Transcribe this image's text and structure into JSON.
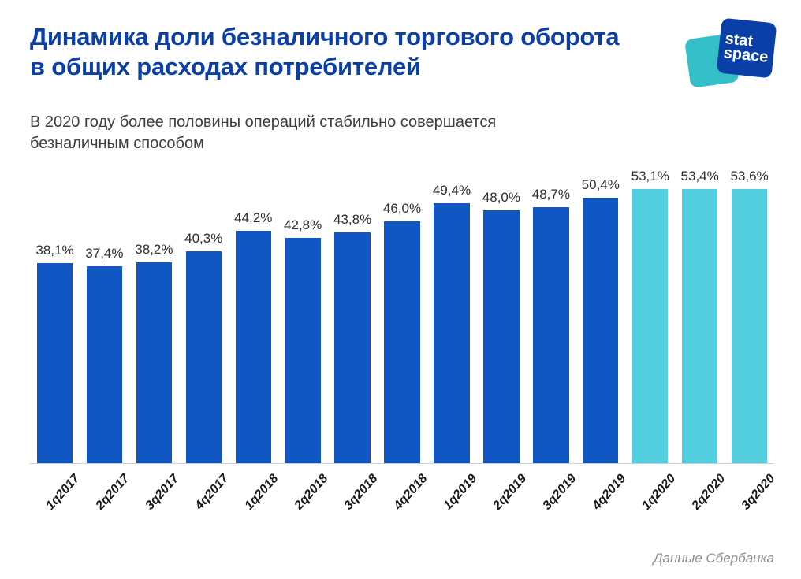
{
  "title": "Динамика доли безналичного торгового оборота в общих расходах потребителей",
  "subtitle": "В 2020 году более половины операций стабильно совершается безналичным способом",
  "source": "Данные Сбербанка",
  "logo": {
    "line1": "stat",
    "line2": "space"
  },
  "chart": {
    "type": "bar",
    "y_max": 56,
    "axis_color": "#cdd2d6",
    "value_label_color": "#2b2f33",
    "value_label_fontsize": 17,
    "xlabel_fontsize": 16,
    "xlabel_color": "#16191c",
    "xlabel_rotation_deg": -48,
    "bar_width_pct": 72,
    "background_color": "#ffffff",
    "colors": {
      "primary": "#1157c3",
      "highlight": "#53cfe0"
    },
    "categories": [
      "1q2017",
      "2q2017",
      "3q2017",
      "4q2017",
      "1q2018",
      "2q2018",
      "3q2018",
      "4q2018",
      "1q2019",
      "2q2019",
      "3q2019",
      "4q2019",
      "1q2020",
      "2q2020",
      "3q2020"
    ],
    "values": [
      38.1,
      37.4,
      38.2,
      40.3,
      44.2,
      42.8,
      43.8,
      46.0,
      49.4,
      48.0,
      48.7,
      50.4,
      53.1,
      53.4,
      53.6
    ],
    "value_labels": [
      "38,1%",
      "37,4%",
      "38,2%",
      "40,3%",
      "44,2%",
      "42,8%",
      "43,8%",
      "46,0%",
      "49,4%",
      "48,0%",
      "48,7%",
      "50,4%",
      "53,1%",
      "53,4%",
      "53,6%"
    ],
    "bar_colors": [
      "#1157c3",
      "#1157c3",
      "#1157c3",
      "#1157c3",
      "#1157c3",
      "#1157c3",
      "#1157c3",
      "#1157c3",
      "#1157c3",
      "#1157c3",
      "#1157c3",
      "#1157c3",
      "#53cfe0",
      "#53cfe0",
      "#53cfe0"
    ]
  }
}
